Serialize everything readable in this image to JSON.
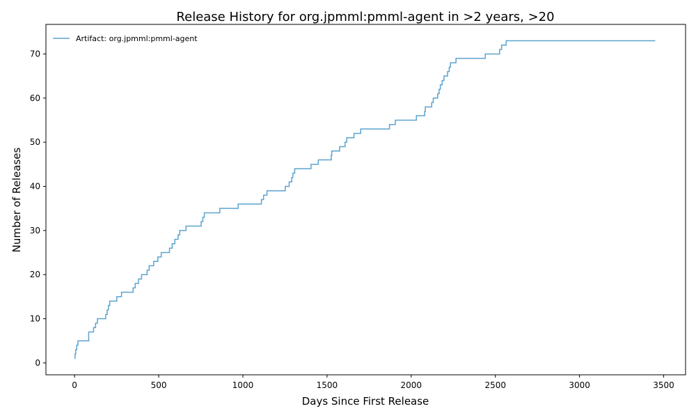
{
  "chart_data": {
    "type": "line",
    "drawstyle": "steps-post",
    "title": "Release History for org.jpmml:pmml-agent in >2 years, >20",
    "xlabel": "Days Since First Release",
    "ylabel": "Number of Releases",
    "xlim": [
      -170,
      3630
    ],
    "ylim": [
      -2.7,
      76.7
    ],
    "xticks": [
      0,
      500,
      1000,
      1500,
      2000,
      2500,
      3000,
      3500
    ],
    "yticks": [
      0,
      10,
      20,
      30,
      40,
      50,
      60,
      70
    ],
    "grid": false,
    "legend_position": "top-left",
    "line_color": "#5ba3cf",
    "series": [
      {
        "name": "Artifact: org.jpmml:pmml-agent",
        "x": [
          0,
          3,
          7,
          13,
          20,
          84,
          113,
          125,
          136,
          185,
          194,
          201,
          209,
          251,
          279,
          348,
          360,
          380,
          398,
          431,
          443,
          470,
          495,
          515,
          564,
          580,
          596,
          615,
          625,
          662,
          752,
          762,
          771,
          863,
          972,
          1110,
          1123,
          1143,
          1252,
          1275,
          1290,
          1297,
          1308,
          1405,
          1448,
          1525,
          1528,
          1575,
          1607,
          1617,
          1660,
          1700,
          1871,
          1906,
          2031,
          2080,
          2084,
          2122,
          2131,
          2157,
          2166,
          2173,
          2184,
          2195,
          2216,
          2226,
          2233,
          2266,
          2440,
          2525,
          2537,
          2564,
          2595,
          2760,
          3450
        ],
        "y": [
          1,
          2,
          3,
          4,
          5,
          7,
          8,
          9,
          10,
          11,
          12,
          13,
          14,
          15,
          16,
          17,
          18,
          19,
          20,
          21,
          22,
          23,
          24,
          25,
          26,
          27,
          28,
          29,
          30,
          31,
          32,
          33,
          34,
          35,
          36,
          37,
          38,
          39,
          40,
          41,
          42,
          43,
          44,
          45,
          46,
          47,
          48,
          49,
          50,
          51,
          52,
          53,
          54,
          55,
          56,
          57,
          58,
          59,
          60,
          61,
          62,
          63,
          64,
          65,
          66,
          67,
          68,
          69,
          70,
          71,
          72,
          73,
          73,
          73,
          73
        ]
      }
    ]
  }
}
